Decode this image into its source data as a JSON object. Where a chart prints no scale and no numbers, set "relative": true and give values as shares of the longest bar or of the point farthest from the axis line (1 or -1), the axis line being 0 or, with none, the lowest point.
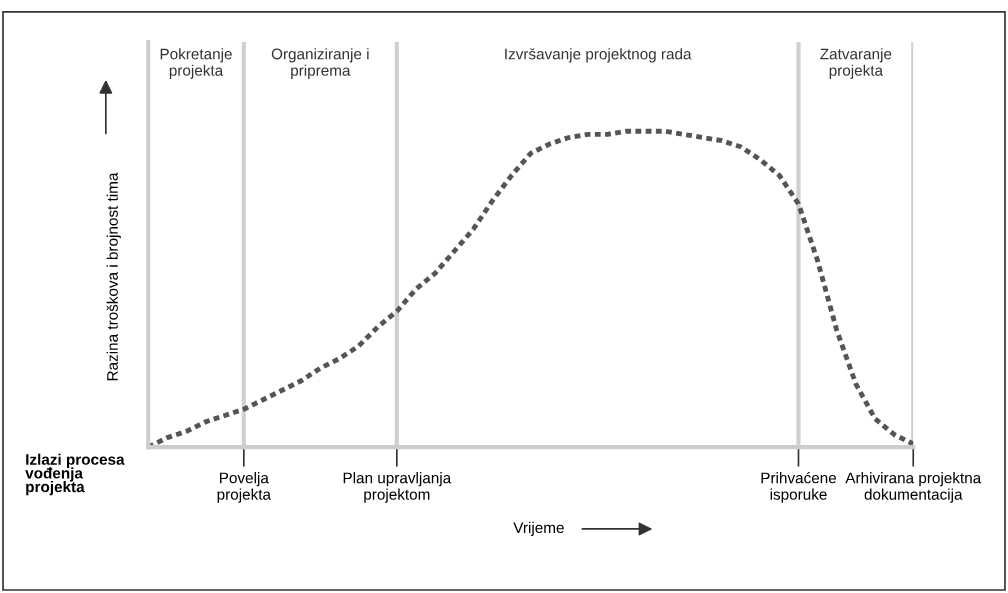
{
  "chart_data": {
    "type": "line",
    "relative": true,
    "ylabel": "Razina troškova i brojnost tima",
    "xlabel": "Vrijeme",
    "categories": [
      null,
      null,
      null,
      null,
      null,
      "Povelja\nprojekta",
      null,
      null,
      null,
      null,
      null,
      null,
      null,
      "Plan upravljanja\nprojektom",
      null,
      null,
      null,
      null,
      null,
      null,
      null,
      null,
      null,
      null,
      null,
      null,
      null,
      null,
      null,
      null,
      null,
      null,
      null,
      null,
      "Prihvaćene\nisporuke",
      null,
      null,
      null,
      null,
      null,
      "Arhivirana projektna\ndokumentacija"
    ],
    "series": [
      {
        "color": "#555555",
        "values": [
          0.0,
          0.03,
          0.05,
          0.08,
          0.1,
          0.12,
          0.15,
          0.18,
          0.21,
          0.25,
          0.28,
          0.32,
          0.38,
          0.43,
          0.5,
          0.55,
          0.62,
          0.69,
          0.78,
          0.86,
          0.93,
          0.96,
          0.98,
          0.99,
          0.99,
          1.0,
          1.0,
          1.0,
          0.99,
          0.98,
          0.97,
          0.95,
          0.91,
          0.86,
          0.77,
          0.59,
          0.37,
          0.2,
          0.09,
          0.04,
          0.01
        ]
      }
    ],
    "line_style": "dashed",
    "marker": "none",
    "grid": "x",
    "legend": false,
    "annotations": [
      "Pokretanje\nprojekta",
      "Organiziranje i\npriprema",
      "Izvršavanje projektnog rada",
      "Zatvaranje\nprojekta",
      "Izlazi procesa\nvođenja\nprojekta"
    ]
  }
}
